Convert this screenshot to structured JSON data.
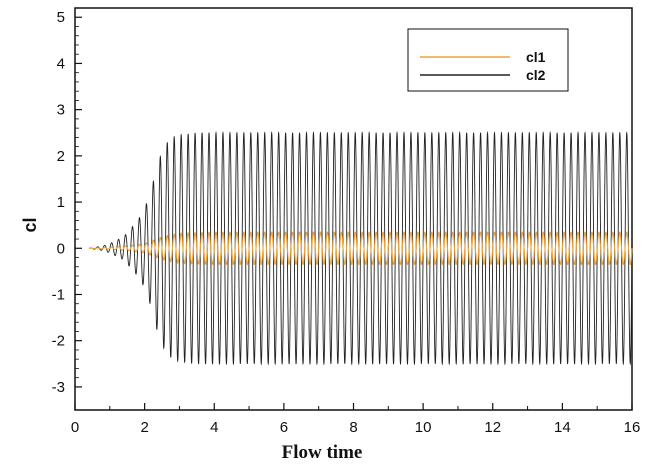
{
  "chart_data": {
    "type": "line",
    "title": "",
    "xlabel": "Flow time",
    "ylabel": "cl",
    "xlim": [
      0,
      16
    ],
    "ylim": [
      -3.5,
      5.2
    ],
    "x_ticks": [
      "0",
      "2",
      "4",
      "6",
      "8",
      "10",
      "12",
      "14",
      "16"
    ],
    "y_ticks": [
      "5",
      "4",
      "3",
      "2",
      "1",
      "0",
      "-1",
      "-2",
      "-3"
    ],
    "legend_position": "top-right",
    "grid": false,
    "series": [
      {
        "name": "cl1",
        "color": "#e8a33a",
        "x": [
          0.4,
          1.0,
          1.5,
          2.0,
          2.5,
          3.0,
          4.0,
          6.0,
          8.0,
          10.0,
          12.0,
          14.0,
          16.0
        ],
        "amplitude": [
          0.0,
          0.02,
          0.05,
          0.1,
          0.25,
          0.33,
          0.35,
          0.35,
          0.35,
          0.35,
          0.35,
          0.35,
          0.35
        ],
        "period": 0.2
      },
      {
        "name": "cl2",
        "color": "#222222",
        "x": [
          0.4,
          0.8,
          1.0,
          1.4,
          1.8,
          2.0,
          2.2,
          2.4,
          2.6,
          2.8,
          3.0,
          3.5,
          4.0,
          6.0,
          8.0,
          10.0,
          12.0,
          14.0,
          16.0
        ],
        "amplitude": [
          0.0,
          0.05,
          0.1,
          0.25,
          0.6,
          0.85,
          1.3,
          1.9,
          2.25,
          2.4,
          2.45,
          2.5,
          2.5,
          2.5,
          2.5,
          2.5,
          2.5,
          2.5,
          2.5
        ],
        "period": 0.2
      }
    ]
  }
}
